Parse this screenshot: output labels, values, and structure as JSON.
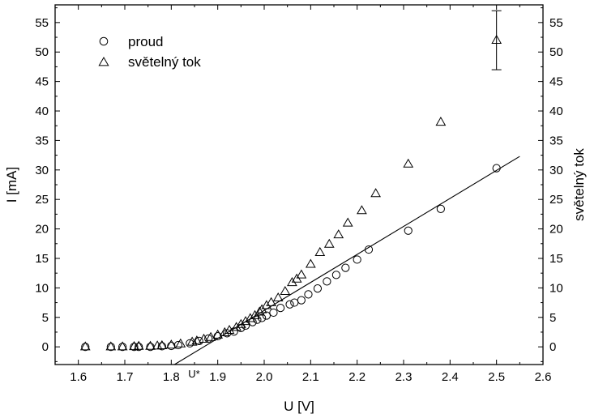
{
  "chart_data": {
    "type": "scatter",
    "title": "",
    "xlabel": "U [V]",
    "ylabel": "I [mA]",
    "y2label": "světelný tok",
    "xlim": [
      1.55,
      2.6
    ],
    "ylim": [
      -3,
      58
    ],
    "xticks": [
      1.6,
      1.7,
      1.8,
      1.9,
      2.0,
      2.1,
      2.2,
      2.3,
      2.4,
      2.5,
      2.6
    ],
    "xtick_labels": [
      "1.6",
      "1.7",
      "1.8",
      "1.9",
      "2.0",
      "2.1",
      "2.2",
      "2.3",
      "2.4",
      "2.5",
      "2.6"
    ],
    "yticks": [
      0,
      5,
      10,
      15,
      20,
      25,
      30,
      35,
      40,
      45,
      50,
      55
    ],
    "ytick_labels": [
      "0",
      "5",
      "10",
      "15",
      "20",
      "25",
      "30",
      "35",
      "40",
      "45",
      "50",
      "55"
    ],
    "grid": false,
    "legend_position": "top-left",
    "series": [
      {
        "name": "proud",
        "marker": "circle",
        "x": [
          1.615,
          1.67,
          1.695,
          1.72,
          1.73,
          1.755,
          1.78,
          1.8,
          1.815,
          1.84,
          1.86,
          1.88,
          1.9,
          1.92,
          1.935,
          1.95,
          1.96,
          1.975,
          1.985,
          1.995,
          2.005,
          2.02,
          2.035,
          2.055,
          2.065,
          2.08,
          2.095,
          2.115,
          2.135,
          2.155,
          2.175,
          2.2,
          2.225,
          2.31,
          2.38,
          2.5
        ],
        "y": [
          0,
          0,
          0,
          0,
          0,
          0,
          0.1,
          0.15,
          0.3,
          0.6,
          1.0,
          1.4,
          1.8,
          2.3,
          2.6,
          3.2,
          3.6,
          4.2,
          4.6,
          4.9,
          5.3,
          5.8,
          6.6,
          7.2,
          7.5,
          7.9,
          8.9,
          9.9,
          11.1,
          12.2,
          13.4,
          14.8,
          16.5,
          19.7,
          23.4,
          30.3
        ]
      },
      {
        "name": "světelný tok",
        "marker": "triangle",
        "x": [
          1.615,
          1.67,
          1.695,
          1.72,
          1.73,
          1.755,
          1.77,
          1.78,
          1.8,
          1.82,
          1.845,
          1.855,
          1.87,
          1.885,
          1.9,
          1.915,
          1.925,
          1.94,
          1.95,
          1.96,
          1.97,
          1.98,
          1.99,
          1.995,
          2.005,
          2.015,
          2.03,
          2.045,
          2.06,
          2.07,
          2.08,
          2.1,
          2.12,
          2.14,
          2.16,
          2.18,
          2.21,
          2.24,
          2.31,
          2.38,
          2.5
        ],
        "y": [
          0,
          0,
          0,
          0.05,
          0.1,
          0.1,
          0.15,
          0.2,
          0.3,
          0.5,
          0.8,
          1.0,
          1.3,
          1.6,
          2.0,
          2.4,
          2.8,
          3.3,
          3.8,
          4.3,
          4.8,
          5.3,
          5.9,
          6.3,
          7.0,
          7.5,
          8.3,
          9.4,
          10.9,
          11.5,
          12.2,
          14.0,
          16.0,
          17.4,
          19.0,
          21.0,
          23.1,
          26.0,
          31.0,
          38.1,
          52.0
        ]
      }
    ],
    "error_bar": {
      "x": 2.5,
      "y": 52.0,
      "low": 47.0,
      "high": 57.0
    },
    "fit_line": {
      "x_start": 1.86,
      "x_end": 2.55,
      "slope": 47.5,
      "x_intercept": 1.87
    },
    "annotation": {
      "text": "U*",
      "x": 1.87
    },
    "colors": {
      "axis": "#000000",
      "marker": "#000000",
      "background": "#ffffff"
    }
  }
}
